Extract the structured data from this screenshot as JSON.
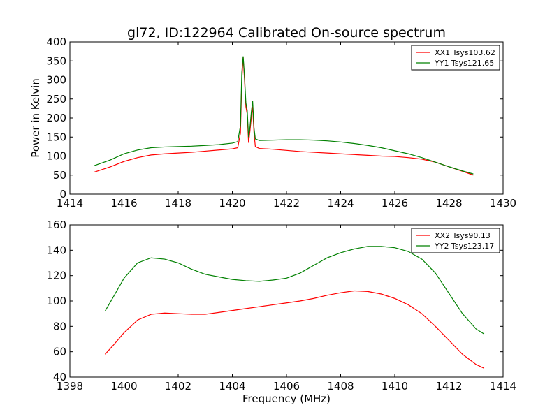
{
  "figure": {
    "title": "gl72, ID:122964 Calibrated On-source spectrum"
  },
  "chart_data": [
    {
      "type": "line",
      "title": "gl72, ID:122964 Calibrated On-source spectrum",
      "xlabel": "",
      "ylabel": "Power in Kelvin",
      "xlim": [
        1414,
        1430
      ],
      "ylim": [
        0,
        400
      ],
      "xticks": [
        1414,
        1416,
        1418,
        1420,
        1422,
        1424,
        1426,
        1428,
        1430
      ],
      "yticks": [
        0,
        50,
        100,
        150,
        200,
        250,
        300,
        350,
        400
      ],
      "grid": false,
      "legend": "top-right",
      "series": [
        {
          "name": "XX1 Tsys103.62",
          "color": "#ff0000",
          "points": [
            [
              1414.9,
              58
            ],
            [
              1415.5,
              72
            ],
            [
              1416,
              86
            ],
            [
              1416.5,
              96
            ],
            [
              1417,
              103
            ],
            [
              1417.5,
              106
            ],
            [
              1418,
              108
            ],
            [
              1418.5,
              110
            ],
            [
              1419,
              113
            ],
            [
              1419.5,
              116
            ],
            [
              1420,
              119
            ],
            [
              1420.2,
              122
            ],
            [
              1420.3,
              160
            ],
            [
              1420.35,
              300
            ],
            [
              1420.4,
              360
            ],
            [
              1420.45,
              300
            ],
            [
              1420.5,
              230
            ],
            [
              1420.55,
              210
            ],
            [
              1420.6,
              135
            ],
            [
              1420.65,
              165
            ],
            [
              1420.7,
              200
            ],
            [
              1420.75,
              230
            ],
            [
              1420.8,
              160
            ],
            [
              1420.85,
              125
            ],
            [
              1421,
              120
            ],
            [
              1421.5,
              118
            ],
            [
              1422,
              115
            ],
            [
              1422.5,
              112
            ],
            [
              1423,
              110
            ],
            [
              1423.5,
              108
            ],
            [
              1424,
              106
            ],
            [
              1424.5,
              104
            ],
            [
              1425,
              102
            ],
            [
              1425.5,
              100
            ],
            [
              1426,
              99
            ],
            [
              1426.5,
              96
            ],
            [
              1427,
              92
            ],
            [
              1427.5,
              84
            ],
            [
              1428,
              72
            ],
            [
              1428.5,
              60
            ],
            [
              1428.9,
              50
            ]
          ]
        },
        {
          "name": "YY1 Tsys121.65",
          "color": "#008000",
          "points": [
            [
              1414.9,
              75
            ],
            [
              1415.5,
              90
            ],
            [
              1416,
              106
            ],
            [
              1416.5,
              116
            ],
            [
              1417,
              122
            ],
            [
              1417.5,
              124
            ],
            [
              1418,
              125
            ],
            [
              1418.5,
              126
            ],
            [
              1419,
              128
            ],
            [
              1419.5,
              130
            ],
            [
              1420,
              134
            ],
            [
              1420.2,
              138
            ],
            [
              1420.3,
              180
            ],
            [
              1420.35,
              320
            ],
            [
              1420.4,
              362
            ],
            [
              1420.45,
              310
            ],
            [
              1420.5,
              240
            ],
            [
              1420.55,
              220
            ],
            [
              1420.6,
              150
            ],
            [
              1420.65,
              175
            ],
            [
              1420.7,
              215
            ],
            [
              1420.75,
              245
            ],
            [
              1420.8,
              175
            ],
            [
              1420.85,
              145
            ],
            [
              1421,
              141
            ],
            [
              1421.5,
              142
            ],
            [
              1422,
              143
            ],
            [
              1422.5,
              143
            ],
            [
              1423,
              142
            ],
            [
              1423.5,
              140
            ],
            [
              1424,
              137
            ],
            [
              1424.5,
              133
            ],
            [
              1425,
              128
            ],
            [
              1425.5,
              122
            ],
            [
              1426,
              114
            ],
            [
              1426.5,
              106
            ],
            [
              1427,
              96
            ],
            [
              1427.5,
              84
            ],
            [
              1428,
              72
            ],
            [
              1428.5,
              61
            ],
            [
              1428.9,
              53
            ]
          ]
        }
      ]
    },
    {
      "type": "line",
      "title": "",
      "xlabel": "Frequency (MHz)",
      "ylabel": "",
      "xlim": [
        1398,
        1414
      ],
      "ylim": [
        40,
        160
      ],
      "xticks": [
        1398,
        1400,
        1402,
        1404,
        1406,
        1408,
        1410,
        1412,
        1414
      ],
      "yticks": [
        40,
        60,
        80,
        100,
        120,
        140,
        160
      ],
      "grid": false,
      "legend": "top-right",
      "series": [
        {
          "name": "XX2 Tsys90.13",
          "color": "#ff0000",
          "points": [
            [
              1399.3,
              58
            ],
            [
              1399.6,
              65
            ],
            [
              1400,
              75
            ],
            [
              1400.5,
              85
            ],
            [
              1401,
              89.5
            ],
            [
              1401.5,
              90.5
            ],
            [
              1402,
              90
            ],
            [
              1402.5,
              89.5
            ],
            [
              1403,
              89.5
            ],
            [
              1403.5,
              91
            ],
            [
              1404,
              92.5
            ],
            [
              1404.5,
              94
            ],
            [
              1405,
              95.5
            ],
            [
              1405.5,
              97
            ],
            [
              1406,
              98.5
            ],
            [
              1406.5,
              100
            ],
            [
              1407,
              102
            ],
            [
              1407.5,
              104.5
            ],
            [
              1408,
              106.5
            ],
            [
              1408.5,
              108
            ],
            [
              1409,
              107.5
            ],
            [
              1409.5,
              105.5
            ],
            [
              1410,
              102
            ],
            [
              1410.5,
              97
            ],
            [
              1411,
              90
            ],
            [
              1411.5,
              80
            ],
            [
              1412,
              69
            ],
            [
              1412.5,
              58
            ],
            [
              1413,
              50
            ],
            [
              1413.3,
              47
            ]
          ]
        },
        {
          "name": "YY2 Tsys123.17",
          "color": "#008000",
          "points": [
            [
              1399.3,
              92
            ],
            [
              1399.6,
              103
            ],
            [
              1400,
              118
            ],
            [
              1400.5,
              130
            ],
            [
              1401,
              134
            ],
            [
              1401.5,
              133
            ],
            [
              1402,
              130
            ],
            [
              1402.5,
              125
            ],
            [
              1403,
              121
            ],
            [
              1403.5,
              119
            ],
            [
              1404,
              117
            ],
            [
              1404.5,
              116
            ],
            [
              1405,
              115.5
            ],
            [
              1405.5,
              116.5
            ],
            [
              1406,
              118
            ],
            [
              1406.5,
              122
            ],
            [
              1407,
              128
            ],
            [
              1407.5,
              134
            ],
            [
              1408,
              138
            ],
            [
              1408.5,
              141
            ],
            [
              1409,
              143
            ],
            [
              1409.5,
              143
            ],
            [
              1410,
              142
            ],
            [
              1410.5,
              139
            ],
            [
              1411,
              133
            ],
            [
              1411.5,
              122
            ],
            [
              1412,
              106
            ],
            [
              1412.5,
              90
            ],
            [
              1413,
              78
            ],
            [
              1413.3,
              74
            ]
          ]
        }
      ]
    }
  ]
}
